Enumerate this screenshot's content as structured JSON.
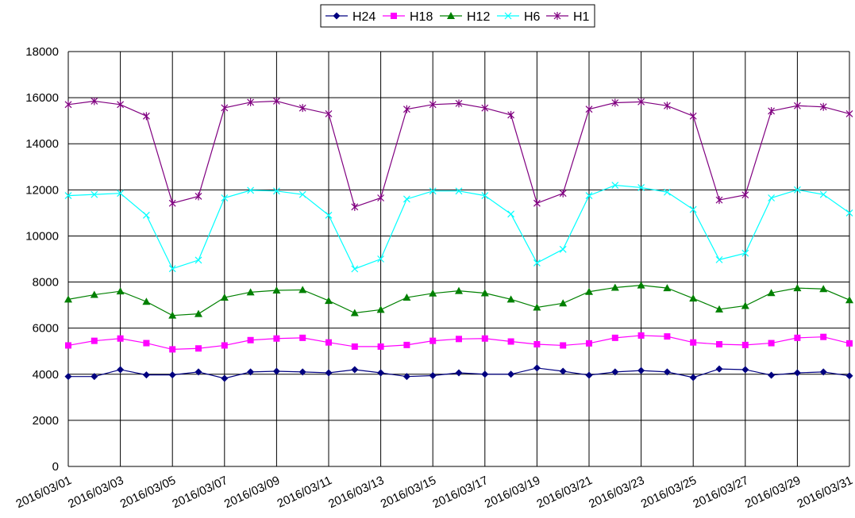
{
  "chart_data": {
    "type": "line",
    "title": "",
    "xlabel": "",
    "ylabel": "",
    "ylim": [
      0,
      18000
    ],
    "yticks": [
      "0",
      "2000",
      "4000",
      "6000",
      "8000",
      "10000",
      "12000",
      "14000",
      "16000",
      "18000"
    ],
    "grid": true,
    "legend_position": "top-center",
    "x": [
      "2016/03/01",
      "2016/03/02",
      "2016/03/03",
      "2016/03/04",
      "2016/03/05",
      "2016/03/06",
      "2016/03/07",
      "2016/03/08",
      "2016/03/09",
      "2016/03/10",
      "2016/03/11",
      "2016/03/12",
      "2016/03/13",
      "2016/03/14",
      "2016/03/15",
      "2016/03/16",
      "2016/03/17",
      "2016/03/18",
      "2016/03/19",
      "2016/03/20",
      "2016/03/21",
      "2016/03/22",
      "2016/03/23",
      "2016/03/24",
      "2016/03/25",
      "2016/03/26",
      "2016/03/27",
      "2016/03/28",
      "2016/03/29",
      "2016/03/30",
      "2016/03/31"
    ],
    "xtick_labels": [
      "2016/03/01",
      "2016/03/03",
      "2016/03/05",
      "2016/03/07",
      "2016/03/09",
      "2016/03/11",
      "2016/03/13",
      "2016/03/15",
      "2016/03/17",
      "2016/03/19",
      "2016/03/21",
      "2016/03/23",
      "2016/03/25",
      "2016/03/27",
      "2016/03/29",
      "2016/03/31"
    ],
    "series": [
      {
        "name": "H24",
        "color": "#000080",
        "marker": "diamond",
        "values": [
          3900,
          3900,
          4200,
          3970,
          3970,
          4100,
          3820,
          4100,
          4130,
          4100,
          4060,
          4200,
          4060,
          3900,
          3940,
          4060,
          4000,
          4000,
          4270,
          4130,
          3960,
          4100,
          4160,
          4100,
          3860,
          4230,
          4200,
          3960,
          4060,
          4100,
          3930
        ]
      },
      {
        "name": "H18",
        "color": "#ff00ff",
        "marker": "square",
        "values": [
          5250,
          5450,
          5550,
          5350,
          5080,
          5120,
          5250,
          5480,
          5550,
          5580,
          5380,
          5200,
          5200,
          5270,
          5450,
          5530,
          5550,
          5420,
          5300,
          5250,
          5340,
          5580,
          5680,
          5640,
          5380,
          5300,
          5270,
          5350,
          5580,
          5620,
          5340
        ]
      },
      {
        "name": "H12",
        "color": "#008000",
        "marker": "triangle",
        "values": [
          7250,
          7450,
          7600,
          7150,
          6550,
          6620,
          7330,
          7560,
          7640,
          7660,
          7190,
          6660,
          6800,
          7330,
          7510,
          7620,
          7520,
          7250,
          6900,
          7080,
          7580,
          7760,
          7860,
          7740,
          7290,
          6820,
          6970,
          7530,
          7740,
          7700,
          7220
        ]
      },
      {
        "name": "H6",
        "color": "#00ffff",
        "marker": "x",
        "values": [
          11750,
          11800,
          11850,
          10900,
          8580,
          8950,
          11650,
          11980,
          11950,
          11800,
          10900,
          8570,
          9000,
          11600,
          11950,
          11950,
          11750,
          10950,
          8830,
          9420,
          11750,
          12200,
          12100,
          11900,
          11150,
          8970,
          9250,
          11650,
          12000,
          11800,
          11000
        ]
      },
      {
        "name": "H1",
        "color": "#800080",
        "marker": "star",
        "values": [
          15700,
          15850,
          15700,
          15200,
          11420,
          11720,
          15560,
          15800,
          15850,
          15550,
          15300,
          11260,
          11650,
          15500,
          15700,
          15750,
          15550,
          15250,
          11420,
          11850,
          15500,
          15780,
          15820,
          15650,
          15200,
          11560,
          11780,
          15420,
          15650,
          15600,
          15300
        ]
      }
    ]
  }
}
